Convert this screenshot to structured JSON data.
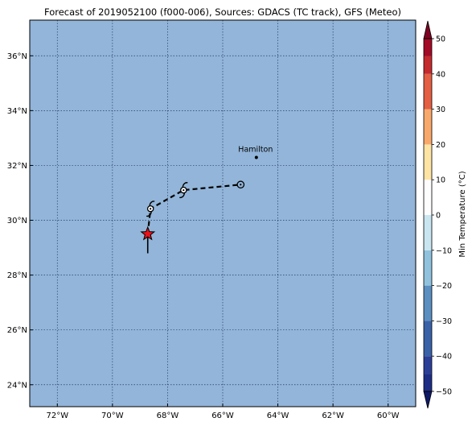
{
  "title": "Forecast of 2019052100 (f000-006), Sources: GDACS (TC track), GFS (Meteo)",
  "map": {
    "lon_range": [
      -73,
      -59
    ],
    "lat_range": [
      23.2,
      37.3
    ],
    "lon_ticks": [
      -72,
      -70,
      -68,
      -66,
      -64,
      -62,
      -60
    ],
    "lat_ticks": [
      24,
      26,
      28,
      30,
      32,
      34,
      36
    ],
    "lon_tick_labels": [
      "72°W",
      "70°W",
      "68°W",
      "66°W",
      "64°W",
      "62°W",
      "60°W"
    ],
    "lat_tick_labels": [
      "24°N",
      "26°N",
      "28°N",
      "30°N",
      "32°N",
      "34°N",
      "36°N"
    ],
    "ocean_color": "#92b5d9",
    "grid": true
  },
  "places": [
    {
      "name": "Hamilton",
      "lon": -64.78,
      "lat": 32.29
    }
  ],
  "current_position": {
    "lon": -68.72,
    "lat": 29.5,
    "marker": "red-star"
  },
  "track": [
    {
      "lon": -68.72,
      "lat": 29.5,
      "marker": "none"
    },
    {
      "lon": -68.62,
      "lat": 30.42,
      "marker": "tropical-storm-symbol"
    },
    {
      "lon": -67.42,
      "lat": 31.1,
      "marker": "tropical-storm-symbol"
    },
    {
      "lon": -65.35,
      "lat": 31.3,
      "marker": "open-circle"
    }
  ],
  "colorbar": {
    "label": "Min Temperature (°C)",
    "ticks": [
      50,
      40,
      30,
      20,
      10,
      0,
      -10,
      -20,
      -30,
      -40,
      -50
    ],
    "tick_labels": [
      "50",
      "40",
      "30",
      "20",
      "10",
      "0",
      "−10",
      "−20",
      "−30",
      "−40",
      "−50"
    ],
    "bands": [
      {
        "from": -50,
        "to": -45,
        "color": "#1e2d85"
      },
      {
        "from": -45,
        "to": -40,
        "color": "#2c3f98"
      },
      {
        "from": -40,
        "to": -30,
        "color": "#3a62a8"
      },
      {
        "from": -30,
        "to": -20,
        "color": "#5b8fc2"
      },
      {
        "from": -20,
        "to": -10,
        "color": "#90c2de"
      },
      {
        "from": -10,
        "to": 0,
        "color": "#c9e6f0"
      },
      {
        "from": 0,
        "to": 10,
        "color": "#fdfdfd"
      },
      {
        "from": 10,
        "to": 20,
        "color": "#fde4a5"
      },
      {
        "from": 20,
        "to": 30,
        "color": "#f9a86c"
      },
      {
        "from": 30,
        "to": 40,
        "color": "#e45f43"
      },
      {
        "from": 40,
        "to": 45,
        "color": "#c52a2e"
      },
      {
        "from": 45,
        "to": 50,
        "color": "#a30b27"
      }
    ],
    "extend_low_color": "#0e1a66",
    "extend_high_color": "#7d0222"
  }
}
